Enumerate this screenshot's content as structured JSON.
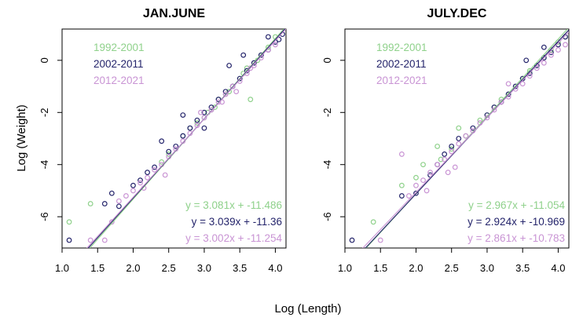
{
  "figure": {
    "xlabel": "Log (Length)",
    "ylabel": "Log (Weight)"
  },
  "chart_data": [
    {
      "type": "scatter",
      "title": "JAN.JUNE",
      "xlabel": "Log (Length)",
      "ylabel": "Log (Weight)",
      "xlim": [
        1.0,
        4.15
      ],
      "ylim": [
        -7.2,
        1.2
      ],
      "xticks": [
        1.0,
        1.5,
        2.0,
        2.5,
        3.0,
        3.5,
        4.0
      ],
      "xtick_labels": [
        "1.0",
        "1.5",
        "2.0",
        "2.5",
        "3.0",
        "3.5",
        "4.0"
      ],
      "yticks": [
        -6,
        -4,
        -2,
        0
      ],
      "ytick_labels": [
        "-6",
        "-4",
        "-2",
        "0"
      ],
      "grid": false,
      "legend_position": "top-left",
      "series": [
        {
          "name": "1992-2001",
          "color": "#8fd18b",
          "slope": 3.081,
          "intercept": -11.486,
          "equation": "y = 3.081x + -11.486",
          "points": [
            [
              1.1,
              -6.2
            ],
            [
              1.4,
              -5.5
            ],
            [
              2.4,
              -3.9
            ],
            [
              2.8,
              -2.6
            ],
            [
              2.9,
              -2.4
            ],
            [
              3.0,
              -2.2
            ],
            [
              3.05,
              -2.0
            ],
            [
              3.1,
              -1.9
            ],
            [
              3.2,
              -1.5
            ],
            [
              3.3,
              -1.3
            ],
            [
              3.4,
              -1.0
            ],
            [
              3.5,
              -0.7
            ],
            [
              3.6,
              -0.3
            ],
            [
              3.65,
              -1.5
            ],
            [
              3.7,
              -0.1
            ],
            [
              3.8,
              0.2
            ],
            [
              3.9,
              0.5
            ],
            [
              4.0,
              0.9
            ],
            [
              2.5,
              -3.6
            ],
            [
              2.7,
              -2.9
            ],
            [
              3.15,
              -1.8
            ],
            [
              3.35,
              -1.2
            ],
            [
              3.55,
              -0.5
            ],
            [
              3.75,
              0.0
            ]
          ]
        },
        {
          "name": "2002-2011",
          "color": "#24246b",
          "slope": 3.039,
          "intercept": -11.36,
          "equation": "y = 3.039x + -11.36",
          "points": [
            [
              1.1,
              -6.9
            ],
            [
              1.6,
              -5.5
            ],
            [
              1.7,
              -5.1
            ],
            [
              1.8,
              -5.6
            ],
            [
              2.0,
              -4.8
            ],
            [
              2.1,
              -4.6
            ],
            [
              2.3,
              -4.1
            ],
            [
              2.5,
              -3.5
            ],
            [
              2.6,
              -3.3
            ],
            [
              2.7,
              -2.9
            ],
            [
              2.8,
              -2.6
            ],
            [
              2.9,
              -2.3
            ],
            [
              3.0,
              -2.0
            ],
            [
              3.1,
              -1.8
            ],
            [
              3.2,
              -1.5
            ],
            [
              3.3,
              -1.2
            ],
            [
              3.4,
              -1.0
            ],
            [
              3.5,
              -0.7
            ],
            [
              3.6,
              -0.4
            ],
            [
              3.7,
              -0.1
            ],
            [
              3.8,
              0.2
            ],
            [
              3.9,
              0.4
            ],
            [
              4.0,
              0.7
            ],
            [
              4.1,
              1.0
            ],
            [
              2.4,
              -3.1
            ],
            [
              2.7,
              -2.1
            ],
            [
              3.35,
              -0.2
            ],
            [
              3.55,
              0.2
            ],
            [
              3.0,
              -2.6
            ],
            [
              2.2,
              -4.3
            ],
            [
              3.9,
              0.9
            ],
            [
              4.05,
              0.8
            ]
          ]
        },
        {
          "name": "2012-2021",
          "color": "#c994d4",
          "slope": 3.002,
          "intercept": -11.254,
          "equation": "y = 3.002x + -11.254",
          "points": [
            [
              1.4,
              -6.9
            ],
            [
              1.6,
              -6.9
            ],
            [
              1.7,
              -6.2
            ],
            [
              1.8,
              -5.4
            ],
            [
              1.9,
              -5.2
            ],
            [
              2.0,
              -5.0
            ],
            [
              2.1,
              -4.7
            ],
            [
              2.2,
              -4.5
            ],
            [
              2.3,
              -4.2
            ],
            [
              2.4,
              -4.0
            ],
            [
              2.5,
              -3.7
            ],
            [
              2.6,
              -3.4
            ],
            [
              2.7,
              -3.1
            ],
            [
              2.8,
              -2.8
            ],
            [
              2.9,
              -2.5
            ],
            [
              3.0,
              -2.2
            ],
            [
              3.1,
              -1.9
            ],
            [
              3.2,
              -1.6
            ],
            [
              3.3,
              -1.3
            ],
            [
              3.4,
              -1.0
            ],
            [
              3.5,
              -0.8
            ],
            [
              3.6,
              -0.5
            ],
            [
              3.7,
              -0.2
            ],
            [
              3.8,
              0.1
            ],
            [
              3.9,
              0.4
            ],
            [
              4.0,
              0.6
            ],
            [
              2.15,
              -4.9
            ],
            [
              2.45,
              -4.4
            ],
            [
              2.95,
              -2.0
            ],
            [
              3.25,
              -1.6
            ],
            [
              3.45,
              -1.2
            ],
            [
              3.65,
              -0.3
            ]
          ]
        }
      ]
    },
    {
      "type": "scatter",
      "title": "JULY.DEC",
      "xlabel": "Log (Length)",
      "ylabel": "",
      "xlim": [
        1.0,
        4.15
      ],
      "ylim": [
        -7.2,
        1.2
      ],
      "xticks": [
        1.0,
        1.5,
        2.0,
        2.5,
        3.0,
        3.5,
        4.0
      ],
      "xtick_labels": [
        "1.0",
        "1.5",
        "2.0",
        "2.5",
        "3.0",
        "3.5",
        "4.0"
      ],
      "yticks": [
        -6,
        -4,
        -2,
        0
      ],
      "ytick_labels": [
        "-6",
        "-4",
        "-2",
        "0"
      ],
      "grid": false,
      "legend_position": "top-left",
      "series": [
        {
          "name": "1992-2001",
          "color": "#8fd18b",
          "slope": 2.967,
          "intercept": -11.054,
          "equation": "y = 2.967x + -11.054",
          "points": [
            [
              1.4,
              -6.2
            ],
            [
              1.8,
              -4.8
            ],
            [
              2.0,
              -4.5
            ],
            [
              2.1,
              -4.0
            ],
            [
              2.3,
              -3.3
            ],
            [
              2.5,
              -3.4
            ],
            [
              2.7,
              -2.9
            ],
            [
              2.9,
              -2.3
            ],
            [
              3.0,
              -2.1
            ],
            [
              3.1,
              -1.8
            ],
            [
              3.2,
              -1.5
            ],
            [
              3.3,
              -1.3
            ],
            [
              3.5,
              -0.7
            ],
            [
              3.6,
              -0.4
            ],
            [
              3.7,
              -0.2
            ],
            [
              3.8,
              0.1
            ],
            [
              3.9,
              0.4
            ],
            [
              4.0,
              0.7
            ],
            [
              4.1,
              0.9
            ],
            [
              2.35,
              -3.8
            ],
            [
              2.6,
              -2.6
            ]
          ]
        },
        {
          "name": "2002-2011",
          "color": "#24246b",
          "slope": 2.924,
          "intercept": -10.969,
          "equation": "y = 2.924x + -10.969",
          "points": [
            [
              1.1,
              -6.9
            ],
            [
              1.8,
              -5.2
            ],
            [
              2.0,
              -5.1
            ],
            [
              2.2,
              -4.4
            ],
            [
              2.3,
              -4.0
            ],
            [
              2.4,
              -3.6
            ],
            [
              2.5,
              -3.3
            ],
            [
              2.6,
              -3.0
            ],
            [
              2.8,
              -2.6
            ],
            [
              3.0,
              -2.1
            ],
            [
              3.1,
              -1.8
            ],
            [
              3.2,
              -1.6
            ],
            [
              3.3,
              -1.3
            ],
            [
              3.4,
              -1.0
            ],
            [
              3.5,
              -0.7
            ],
            [
              3.6,
              -0.5
            ],
            [
              3.7,
              -0.2
            ],
            [
              3.8,
              0.1
            ],
            [
              3.9,
              0.3
            ],
            [
              4.0,
              0.6
            ],
            [
              4.1,
              0.9
            ],
            [
              3.55,
              0.0
            ],
            [
              3.8,
              0.5
            ]
          ]
        },
        {
          "name": "2012-2021",
          "color": "#c994d4",
          "slope": 2.861,
          "intercept": -10.783,
          "equation": "y = 2.861x + -10.783",
          "points": [
            [
              1.5,
              -6.9
            ],
            [
              1.8,
              -3.6
            ],
            [
              1.9,
              -5.2
            ],
            [
              2.0,
              -4.8
            ],
            [
              2.1,
              -4.6
            ],
            [
              2.2,
              -4.3
            ],
            [
              2.3,
              -4.0
            ],
            [
              2.4,
              -3.8
            ],
            [
              2.5,
              -3.5
            ],
            [
              2.6,
              -3.2
            ],
            [
              2.7,
              -2.9
            ],
            [
              2.8,
              -2.7
            ],
            [
              2.9,
              -2.4
            ],
            [
              3.0,
              -2.2
            ],
            [
              3.1,
              -1.9
            ],
            [
              3.2,
              -1.6
            ],
            [
              3.3,
              -1.4
            ],
            [
              3.4,
              -1.1
            ],
            [
              3.5,
              -0.9
            ],
            [
              3.6,
              -0.6
            ],
            [
              3.7,
              -0.3
            ],
            [
              3.8,
              -0.1
            ],
            [
              3.9,
              0.2
            ],
            [
              4.0,
              0.4
            ],
            [
              4.1,
              0.6
            ],
            [
              2.15,
              -5.0
            ],
            [
              2.45,
              -4.3
            ],
            [
              2.55,
              -4.1
            ],
            [
              3.3,
              -0.9
            ]
          ]
        }
      ]
    }
  ]
}
